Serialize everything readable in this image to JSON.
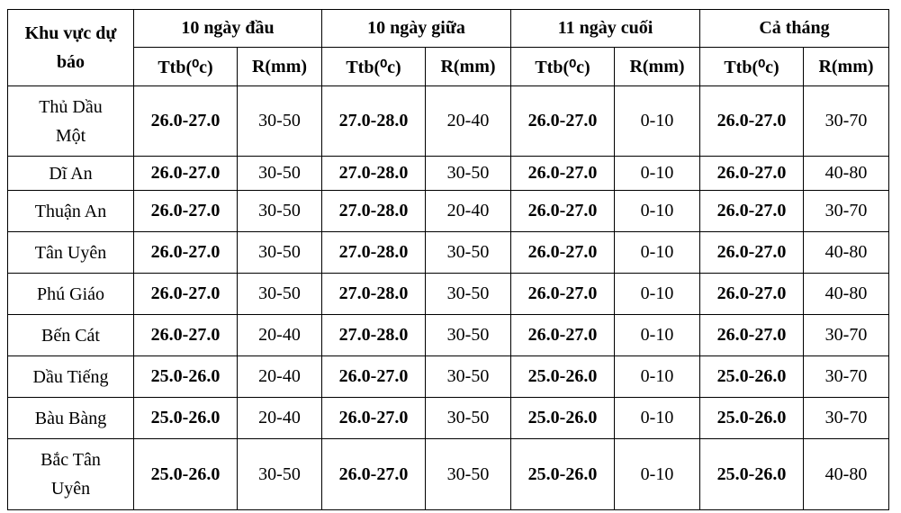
{
  "table": {
    "corner": "Khu vực dự báo",
    "groups": [
      "10 ngày đầu",
      "10 ngày giữa",
      "11 ngày cuối",
      "Cả tháng"
    ],
    "subheaders": [
      "Ttb(⁰c)",
      "R(mm)"
    ],
    "rows": [
      [
        "Thủ Dầu Một",
        "26.0-27.0",
        "30-50",
        "27.0-28.0",
        "20-40",
        "26.0-27.0",
        "0-10",
        "26.0-27.0",
        "30-70"
      ],
      [
        "Dĩ An",
        "26.0-27.0",
        "30-50",
        "27.0-28.0",
        "30-50",
        "26.0-27.0",
        "0-10",
        "26.0-27.0",
        "40-80"
      ],
      [
        "Thuận An",
        "26.0-27.0",
        "30-50",
        "27.0-28.0",
        "20-40",
        "26.0-27.0",
        "0-10",
        "26.0-27.0",
        "30-70"
      ],
      [
        "Tân Uyên",
        "26.0-27.0",
        "30-50",
        "27.0-28.0",
        "30-50",
        "26.0-27.0",
        "0-10",
        "26.0-27.0",
        "40-80"
      ],
      [
        "Phú Giáo",
        "26.0-27.0",
        "30-50",
        "27.0-28.0",
        "30-50",
        "26.0-27.0",
        "0-10",
        "26.0-27.0",
        "40-80"
      ],
      [
        "Bến Cát",
        "26.0-27.0",
        "20-40",
        "27.0-28.0",
        "30-50",
        "26.0-27.0",
        "0-10",
        "26.0-27.0",
        "30-70"
      ],
      [
        "Dầu Tiếng",
        "25.0-26.0",
        "20-40",
        "26.0-27.0",
        "30-50",
        "25.0-26.0",
        "0-10",
        "25.0-26.0",
        "30-70"
      ],
      [
        "Bàu Bàng",
        "25.0-26.0",
        "20-40",
        "26.0-27.0",
        "30-50",
        "25.0-26.0",
        "0-10",
        "25.0-26.0",
        "30-70"
      ],
      [
        "Bắc Tân Uyên",
        "25.0-26.0",
        "30-50",
        "26.0-27.0",
        "30-50",
        "25.0-26.0",
        "0-10",
        "25.0-26.0",
        "40-80"
      ]
    ]
  }
}
